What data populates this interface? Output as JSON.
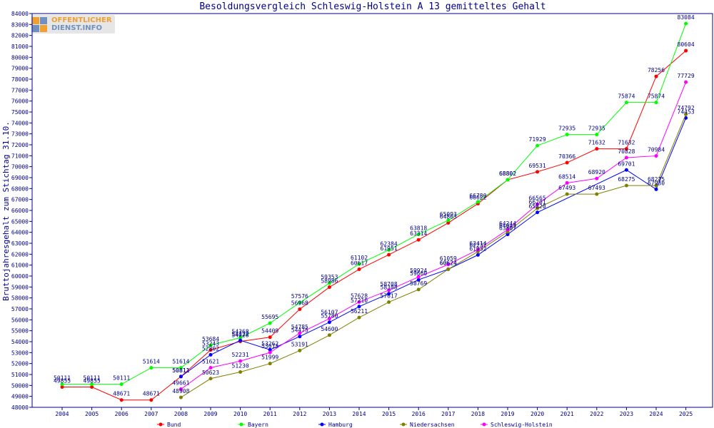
{
  "logo": {
    "line1": "OFFENTLICHER",
    "line2": "DIENST.INFO"
  },
  "chart_data": {
    "type": "line",
    "title": "Besoldungsvergleich Schleswig-Holstein A 13 gemitteltes Gehalt",
    "ylabel": "Bruttojahresgehalt zum Stichtag 31.10.",
    "xlabel": "",
    "ylim": [
      48000,
      84000
    ],
    "ytick_step": 1000,
    "grid": false,
    "legend_position": "bottom",
    "categories": [
      "2004",
      "2005",
      "2006",
      "2007",
      "2008",
      "2009",
      "2010",
      "2011",
      "2012",
      "2013",
      "2014",
      "2015",
      "2016",
      "2017",
      "2018",
      "2019",
      "2020",
      "2021",
      "2022",
      "2023",
      "2024",
      "2025"
    ],
    "series": [
      {
        "name": "Bund",
        "color": "#ff0000",
        "values": [
          49855,
          49855,
          48671,
          48671,
          50811,
          53243,
          54028,
          54409,
          56968,
          58986,
          60617,
          61951,
          63314,
          64863,
          66622,
          68802,
          69531,
          70366,
          71632,
          71632,
          78256,
          80604
        ]
      },
      {
        "name": "Bayern",
        "color": "#00ff00",
        "values": [
          50111,
          50111,
          50111,
          51614,
          51614,
          53684,
          54368,
          55695,
          57576,
          59353,
          61102,
          62384,
          63818,
          65093,
          66780,
          68802,
          71929,
          72935,
          72935,
          75874,
          75874,
          83084
        ]
      },
      {
        "name": "Hamburg",
        "color": "#0000ff",
        "values": [
          null,
          null,
          null,
          null,
          50811,
          52802,
          54122,
          53262,
          54475,
          55780,
          57210,
          58388,
          59660,
          60624,
          61932,
          63807,
          65820,
          null,
          null,
          69701,
          67930,
          74453
        ]
      },
      {
        "name": "Niedersachsen",
        "color": "#808000",
        "values": [
          null,
          null,
          null,
          null,
          48908,
          50623,
          51230,
          51999,
          53191,
          54600,
          56211,
          57617,
          58769,
          60624,
          62237,
          64043,
          66201,
          67493,
          67493,
          68275,
          68275,
          74792
        ]
      },
      {
        "name": "Schleswig-Holstein",
        "color": "#ff00ff",
        "values": [
          null,
          null,
          null,
          null,
          49661,
          51621,
          52231,
          53013,
          54785,
          56107,
          57628,
          58708,
          59924,
          61059,
          62414,
          64244,
          66565,
          68514,
          68920,
          70828,
          70984,
          77729
        ]
      }
    ],
    "data_labels": true
  }
}
